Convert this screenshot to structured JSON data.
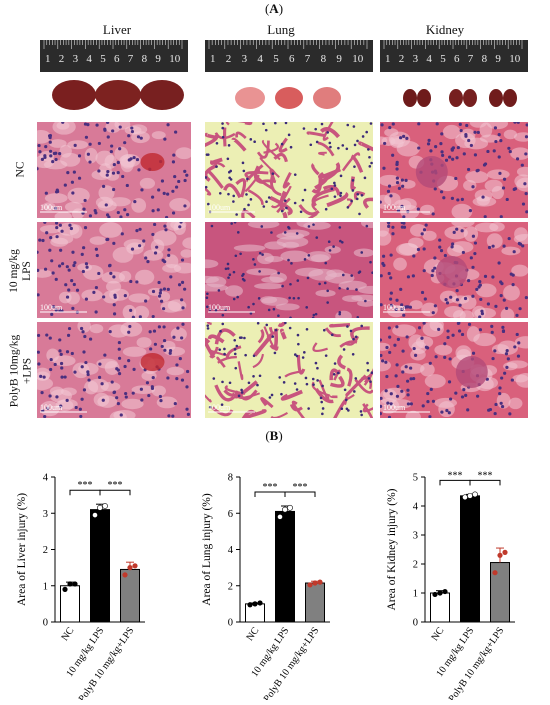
{
  "figure": {
    "panel_a_label": "A",
    "panel_b_label": "B",
    "columns": [
      "Liver",
      "Lung",
      "Kidney"
    ],
    "rows": [
      {
        "lines": [
          "NC"
        ]
      },
      {
        "lines": [
          "10 mg/kg",
          "LPS"
        ]
      },
      {
        "lines": [
          "PolyB 10mg/kg",
          "+LPS"
        ]
      }
    ],
    "ruler_numbers": [
      "1",
      "2",
      "3",
      "4",
      "5",
      "6",
      "7",
      "8",
      "9",
      "10"
    ],
    "scale_bar_text": "100um",
    "stain_colors": {
      "liver": "#d87a98",
      "lung_bg": "#ecefb4",
      "lung_tissue": "#c8557e",
      "kidney": "#d9607c"
    }
  },
  "chart_data": [
    {
      "type": "bar",
      "title": "",
      "xlabel": "",
      "ylabel": "Area of Liver injury (%)",
      "categories": [
        "NC",
        "10 mg/kg LPS",
        "PolyB 10 mg/kg+LPS"
      ],
      "values": [
        1.0,
        3.1,
        1.45
      ],
      "errors": [
        0.1,
        0.15,
        0.2
      ],
      "points": [
        [
          0.9,
          1.05,
          1.05
        ],
        [
          2.95,
          3.15,
          3.2
        ],
        [
          1.3,
          1.5,
          1.55
        ]
      ],
      "ylim": [
        0,
        4
      ],
      "yticks": [
        "0",
        "1",
        "2",
        "3",
        "4"
      ],
      "bar_colors": [
        "#ffffff",
        "#000000",
        "#808080"
      ],
      "point_colors": [
        "#000000",
        "#ffffff",
        "#c0392b"
      ],
      "significance": [
        "***",
        "***"
      ]
    },
    {
      "type": "bar",
      "title": "",
      "xlabel": "",
      "ylabel": "Area of Lung injury (%)",
      "categories": [
        "NC",
        "10 mg/kg LPS",
        "PolyB 10 mg/kg+LPS"
      ],
      "values": [
        1.0,
        6.1,
        2.15
      ],
      "errors": [
        0.05,
        0.3,
        0.1
      ],
      "points": [
        [
          0.95,
          1.0,
          1.05
        ],
        [
          5.8,
          6.2,
          6.3
        ],
        [
          2.05,
          2.15,
          2.2
        ]
      ],
      "ylim": [
        0,
        8
      ],
      "yticks": [
        "0",
        "2",
        "4",
        "6",
        "8"
      ],
      "bar_colors": [
        "#ffffff",
        "#000000",
        "#808080"
      ],
      "point_colors": [
        "#000000",
        "#ffffff",
        "#c0392b"
      ],
      "significance": [
        "***",
        "***"
      ]
    },
    {
      "type": "bar",
      "title": "",
      "xlabel": "",
      "ylabel": "Area of Kidney injury (%)",
      "categories": [
        "NC",
        "10 mg/kg LPS",
        "PolyB 10 mg/kg+LPS"
      ],
      "values": [
        1.0,
        4.35,
        2.05
      ],
      "errors": [
        0.08,
        0.05,
        0.5
      ],
      "points": [
        [
          0.95,
          1.0,
          1.05
        ],
        [
          4.3,
          4.35,
          4.4
        ],
        [
          1.7,
          2.3,
          2.4
        ]
      ],
      "ylim": [
        0,
        5
      ],
      "yticks": [
        "0",
        "1",
        "2",
        "3",
        "4",
        "5"
      ],
      "bar_colors": [
        "#ffffff",
        "#000000",
        "#808080"
      ],
      "point_colors": [
        "#000000",
        "#ffffff",
        "#c0392b"
      ],
      "significance": [
        "***",
        "***"
      ]
    }
  ]
}
